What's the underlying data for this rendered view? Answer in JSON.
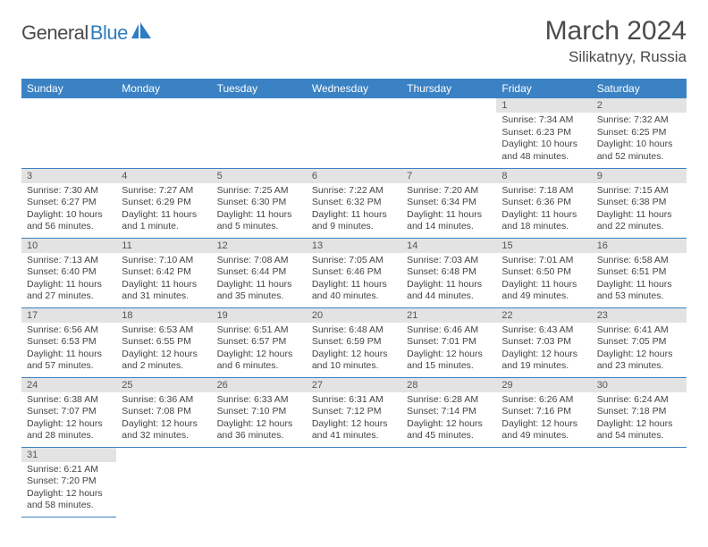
{
  "logo": {
    "word1": "General",
    "word2": "Blue"
  },
  "title": "March 2024",
  "location": "Silikatnyy, Russia",
  "weekdays": [
    "Sunday",
    "Monday",
    "Tuesday",
    "Wednesday",
    "Thursday",
    "Friday",
    "Saturday"
  ],
  "colors": {
    "header_bg": "#3a82c4",
    "header_fg": "#ffffff",
    "daynum_bg": "#e3e3e3",
    "rule": "#3a82c4",
    "logo_blue": "#2f7cc2"
  },
  "weeks": [
    [
      null,
      null,
      null,
      null,
      null,
      {
        "n": "1",
        "sr": "Sunrise: 7:34 AM",
        "ss": "Sunset: 6:23 PM",
        "dl": "Daylight: 10 hours and 48 minutes."
      },
      {
        "n": "2",
        "sr": "Sunrise: 7:32 AM",
        "ss": "Sunset: 6:25 PM",
        "dl": "Daylight: 10 hours and 52 minutes."
      }
    ],
    [
      {
        "n": "3",
        "sr": "Sunrise: 7:30 AM",
        "ss": "Sunset: 6:27 PM",
        "dl": "Daylight: 10 hours and 56 minutes."
      },
      {
        "n": "4",
        "sr": "Sunrise: 7:27 AM",
        "ss": "Sunset: 6:29 PM",
        "dl": "Daylight: 11 hours and 1 minute."
      },
      {
        "n": "5",
        "sr": "Sunrise: 7:25 AM",
        "ss": "Sunset: 6:30 PM",
        "dl": "Daylight: 11 hours and 5 minutes."
      },
      {
        "n": "6",
        "sr": "Sunrise: 7:22 AM",
        "ss": "Sunset: 6:32 PM",
        "dl": "Daylight: 11 hours and 9 minutes."
      },
      {
        "n": "7",
        "sr": "Sunrise: 7:20 AM",
        "ss": "Sunset: 6:34 PM",
        "dl": "Daylight: 11 hours and 14 minutes."
      },
      {
        "n": "8",
        "sr": "Sunrise: 7:18 AM",
        "ss": "Sunset: 6:36 PM",
        "dl": "Daylight: 11 hours and 18 minutes."
      },
      {
        "n": "9",
        "sr": "Sunrise: 7:15 AM",
        "ss": "Sunset: 6:38 PM",
        "dl": "Daylight: 11 hours and 22 minutes."
      }
    ],
    [
      {
        "n": "10",
        "sr": "Sunrise: 7:13 AM",
        "ss": "Sunset: 6:40 PM",
        "dl": "Daylight: 11 hours and 27 minutes."
      },
      {
        "n": "11",
        "sr": "Sunrise: 7:10 AM",
        "ss": "Sunset: 6:42 PM",
        "dl": "Daylight: 11 hours and 31 minutes."
      },
      {
        "n": "12",
        "sr": "Sunrise: 7:08 AM",
        "ss": "Sunset: 6:44 PM",
        "dl": "Daylight: 11 hours and 35 minutes."
      },
      {
        "n": "13",
        "sr": "Sunrise: 7:05 AM",
        "ss": "Sunset: 6:46 PM",
        "dl": "Daylight: 11 hours and 40 minutes."
      },
      {
        "n": "14",
        "sr": "Sunrise: 7:03 AM",
        "ss": "Sunset: 6:48 PM",
        "dl": "Daylight: 11 hours and 44 minutes."
      },
      {
        "n": "15",
        "sr": "Sunrise: 7:01 AM",
        "ss": "Sunset: 6:50 PM",
        "dl": "Daylight: 11 hours and 49 minutes."
      },
      {
        "n": "16",
        "sr": "Sunrise: 6:58 AM",
        "ss": "Sunset: 6:51 PM",
        "dl": "Daylight: 11 hours and 53 minutes."
      }
    ],
    [
      {
        "n": "17",
        "sr": "Sunrise: 6:56 AM",
        "ss": "Sunset: 6:53 PM",
        "dl": "Daylight: 11 hours and 57 minutes."
      },
      {
        "n": "18",
        "sr": "Sunrise: 6:53 AM",
        "ss": "Sunset: 6:55 PM",
        "dl": "Daylight: 12 hours and 2 minutes."
      },
      {
        "n": "19",
        "sr": "Sunrise: 6:51 AM",
        "ss": "Sunset: 6:57 PM",
        "dl": "Daylight: 12 hours and 6 minutes."
      },
      {
        "n": "20",
        "sr": "Sunrise: 6:48 AM",
        "ss": "Sunset: 6:59 PM",
        "dl": "Daylight: 12 hours and 10 minutes."
      },
      {
        "n": "21",
        "sr": "Sunrise: 6:46 AM",
        "ss": "Sunset: 7:01 PM",
        "dl": "Daylight: 12 hours and 15 minutes."
      },
      {
        "n": "22",
        "sr": "Sunrise: 6:43 AM",
        "ss": "Sunset: 7:03 PM",
        "dl": "Daylight: 12 hours and 19 minutes."
      },
      {
        "n": "23",
        "sr": "Sunrise: 6:41 AM",
        "ss": "Sunset: 7:05 PM",
        "dl": "Daylight: 12 hours and 23 minutes."
      }
    ],
    [
      {
        "n": "24",
        "sr": "Sunrise: 6:38 AM",
        "ss": "Sunset: 7:07 PM",
        "dl": "Daylight: 12 hours and 28 minutes."
      },
      {
        "n": "25",
        "sr": "Sunrise: 6:36 AM",
        "ss": "Sunset: 7:08 PM",
        "dl": "Daylight: 12 hours and 32 minutes."
      },
      {
        "n": "26",
        "sr": "Sunrise: 6:33 AM",
        "ss": "Sunset: 7:10 PM",
        "dl": "Daylight: 12 hours and 36 minutes."
      },
      {
        "n": "27",
        "sr": "Sunrise: 6:31 AM",
        "ss": "Sunset: 7:12 PM",
        "dl": "Daylight: 12 hours and 41 minutes."
      },
      {
        "n": "28",
        "sr": "Sunrise: 6:28 AM",
        "ss": "Sunset: 7:14 PM",
        "dl": "Daylight: 12 hours and 45 minutes."
      },
      {
        "n": "29",
        "sr": "Sunrise: 6:26 AM",
        "ss": "Sunset: 7:16 PM",
        "dl": "Daylight: 12 hours and 49 minutes."
      },
      {
        "n": "30",
        "sr": "Sunrise: 6:24 AM",
        "ss": "Sunset: 7:18 PM",
        "dl": "Daylight: 12 hours and 54 minutes."
      }
    ],
    [
      {
        "n": "31",
        "sr": "Sunrise: 6:21 AM",
        "ss": "Sunset: 7:20 PM",
        "dl": "Daylight: 12 hours and 58 minutes."
      },
      null,
      null,
      null,
      null,
      null,
      null
    ]
  ]
}
